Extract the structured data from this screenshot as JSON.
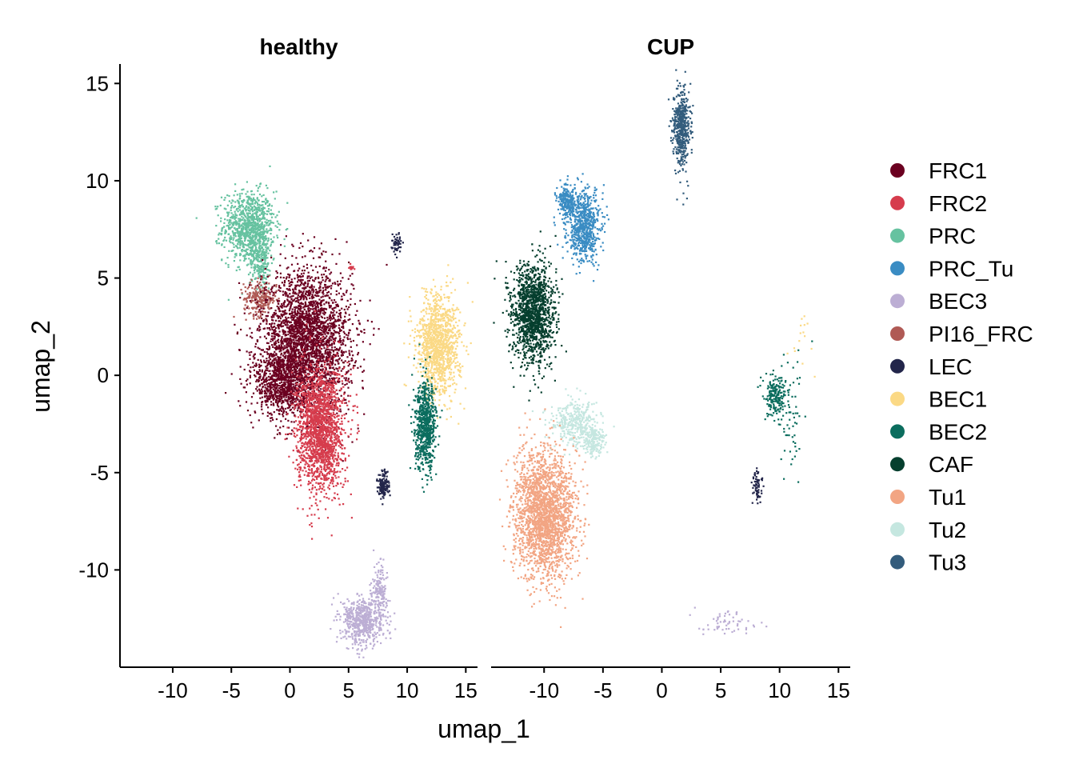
{
  "chart_data": {
    "type": "scatter",
    "title": "",
    "xlabel": "umap_1",
    "ylabel": "umap_2",
    "facets": [
      "healthy",
      "CUP"
    ],
    "xlim": [
      -14.5,
      16
    ],
    "ylim": [
      -15,
      16
    ],
    "x_ticks": [
      -10,
      -5,
      0,
      5,
      10,
      15
    ],
    "y_ticks": [
      15,
      10,
      5,
      0,
      -5,
      -10
    ],
    "legend_position": "right",
    "grid": false,
    "series": [
      {
        "name": "FRC1",
        "color": "#6b0020"
      },
      {
        "name": "FRC2",
        "color": "#d63c4d"
      },
      {
        "name": "PRC",
        "color": "#66c2a0"
      },
      {
        "name": "PRC_Tu",
        "color": "#3a8cc3"
      },
      {
        "name": "BEC3",
        "color": "#bcaed4"
      },
      {
        "name": "PI16_FRC",
        "color": "#b05a55"
      },
      {
        "name": "LEC",
        "color": "#22254a"
      },
      {
        "name": "BEC1",
        "color": "#fbd985"
      },
      {
        "name": "BEC2",
        "color": "#0b6d5e"
      },
      {
        "name": "CAF",
        "color": "#053f2e"
      },
      {
        "name": "Tu1",
        "color": "#f2a583"
      },
      {
        "name": "Tu2",
        "color": "#c5e7e0"
      },
      {
        "name": "Tu3",
        "color": "#335c7c"
      }
    ],
    "clusters": [
      {
        "facet": "healthy",
        "series": "PRC",
        "cx": -3.6,
        "cy": 7.7,
        "sx": 1.1,
        "sy": 0.9,
        "n": 900
      },
      {
        "facet": "healthy",
        "series": "PRC",
        "cx": -2.6,
        "cy": 6.2,
        "sx": 0.5,
        "sy": 0.9,
        "n": 300
      },
      {
        "facet": "healthy",
        "series": "PI16_FRC",
        "cx": -2.6,
        "cy": 4.0,
        "sx": 0.7,
        "sy": 0.45,
        "n": 250
      },
      {
        "facet": "healthy",
        "series": "FRC1",
        "cx": 1.3,
        "cy": 1.8,
        "sx": 1.9,
        "sy": 1.8,
        "n": 3000
      },
      {
        "facet": "healthy",
        "series": "FRC1",
        "cx": -0.8,
        "cy": -0.4,
        "sx": 1.1,
        "sy": 0.8,
        "n": 700
      },
      {
        "facet": "healthy",
        "series": "FRC2",
        "cx": 2.5,
        "cy": -2.7,
        "sx": 1.0,
        "sy": 1.6,
        "n": 1800
      },
      {
        "facet": "healthy",
        "series": "FRC2",
        "cx": 5.2,
        "cy": 5.6,
        "sx": 0.1,
        "sy": 0.1,
        "n": 15
      },
      {
        "facet": "healthy",
        "series": "BEC1",
        "cx": 12.6,
        "cy": 1.6,
        "sx": 0.9,
        "sy": 1.3,
        "n": 1200
      },
      {
        "facet": "healthy",
        "series": "BEC2",
        "cx": 11.5,
        "cy": -2.6,
        "sx": 0.45,
        "sy": 1.1,
        "n": 700
      },
      {
        "facet": "healthy",
        "series": "LEC",
        "cx": 7.9,
        "cy": -5.6,
        "sx": 0.25,
        "sy": 0.35,
        "n": 150
      },
      {
        "facet": "healthy",
        "series": "LEC",
        "cx": 9.0,
        "cy": 6.8,
        "sx": 0.2,
        "sy": 0.3,
        "n": 50
      },
      {
        "facet": "healthy",
        "series": "BEC3",
        "cx": 6.2,
        "cy": -12.6,
        "sx": 0.9,
        "sy": 0.6,
        "n": 600
      },
      {
        "facet": "healthy",
        "series": "BEC3",
        "cx": 7.6,
        "cy": -11.0,
        "sx": 0.35,
        "sy": 0.7,
        "n": 150
      },
      {
        "facet": "CUP",
        "series": "Tu3",
        "cx": 1.6,
        "cy": 12.8,
        "sx": 0.35,
        "sy": 1.0,
        "n": 500
      },
      {
        "facet": "CUP",
        "series": "PRC_Tu",
        "cx": -6.7,
        "cy": 7.7,
        "sx": 0.7,
        "sy": 0.9,
        "n": 700
      },
      {
        "facet": "CUP",
        "series": "PRC_Tu",
        "cx": -8.2,
        "cy": 9.0,
        "sx": 0.4,
        "sy": 0.4,
        "n": 200
      },
      {
        "facet": "CUP",
        "series": "CAF",
        "cx": -11.0,
        "cy": 3.2,
        "sx": 0.9,
        "sy": 1.3,
        "n": 1400
      },
      {
        "facet": "CUP",
        "series": "Tu2",
        "cx": -7.5,
        "cy": -2.4,
        "sx": 1.0,
        "sy": 0.6,
        "n": 350
      },
      {
        "facet": "CUP",
        "series": "Tu2",
        "cx": -5.9,
        "cy": -3.3,
        "sx": 0.5,
        "sy": 0.4,
        "n": 200
      },
      {
        "facet": "CUP",
        "series": "Tu1",
        "cx": -10.0,
        "cy": -7.1,
        "sx": 1.3,
        "sy": 1.6,
        "n": 2200
      },
      {
        "facet": "CUP",
        "series": "BEC2",
        "cx": 9.6,
        "cy": -1.0,
        "sx": 0.5,
        "sy": 0.5,
        "n": 200
      },
      {
        "facet": "CUP",
        "series": "BEC2",
        "cx": 11.0,
        "cy": -2.0,
        "sx": 0.5,
        "sy": 1.6,
        "n": 60
      },
      {
        "facet": "CUP",
        "series": "LEC",
        "cx": 8.0,
        "cy": -5.7,
        "sx": 0.2,
        "sy": 0.4,
        "n": 70
      },
      {
        "facet": "CUP",
        "series": "BEC3",
        "cx": 5.5,
        "cy": -12.7,
        "sx": 1.3,
        "sy": 0.3,
        "n": 60
      },
      {
        "facet": "CUP",
        "series": "BEC1",
        "cx": 11.8,
        "cy": 2.0,
        "sx": 0.6,
        "sy": 0.8,
        "n": 15
      }
    ]
  }
}
